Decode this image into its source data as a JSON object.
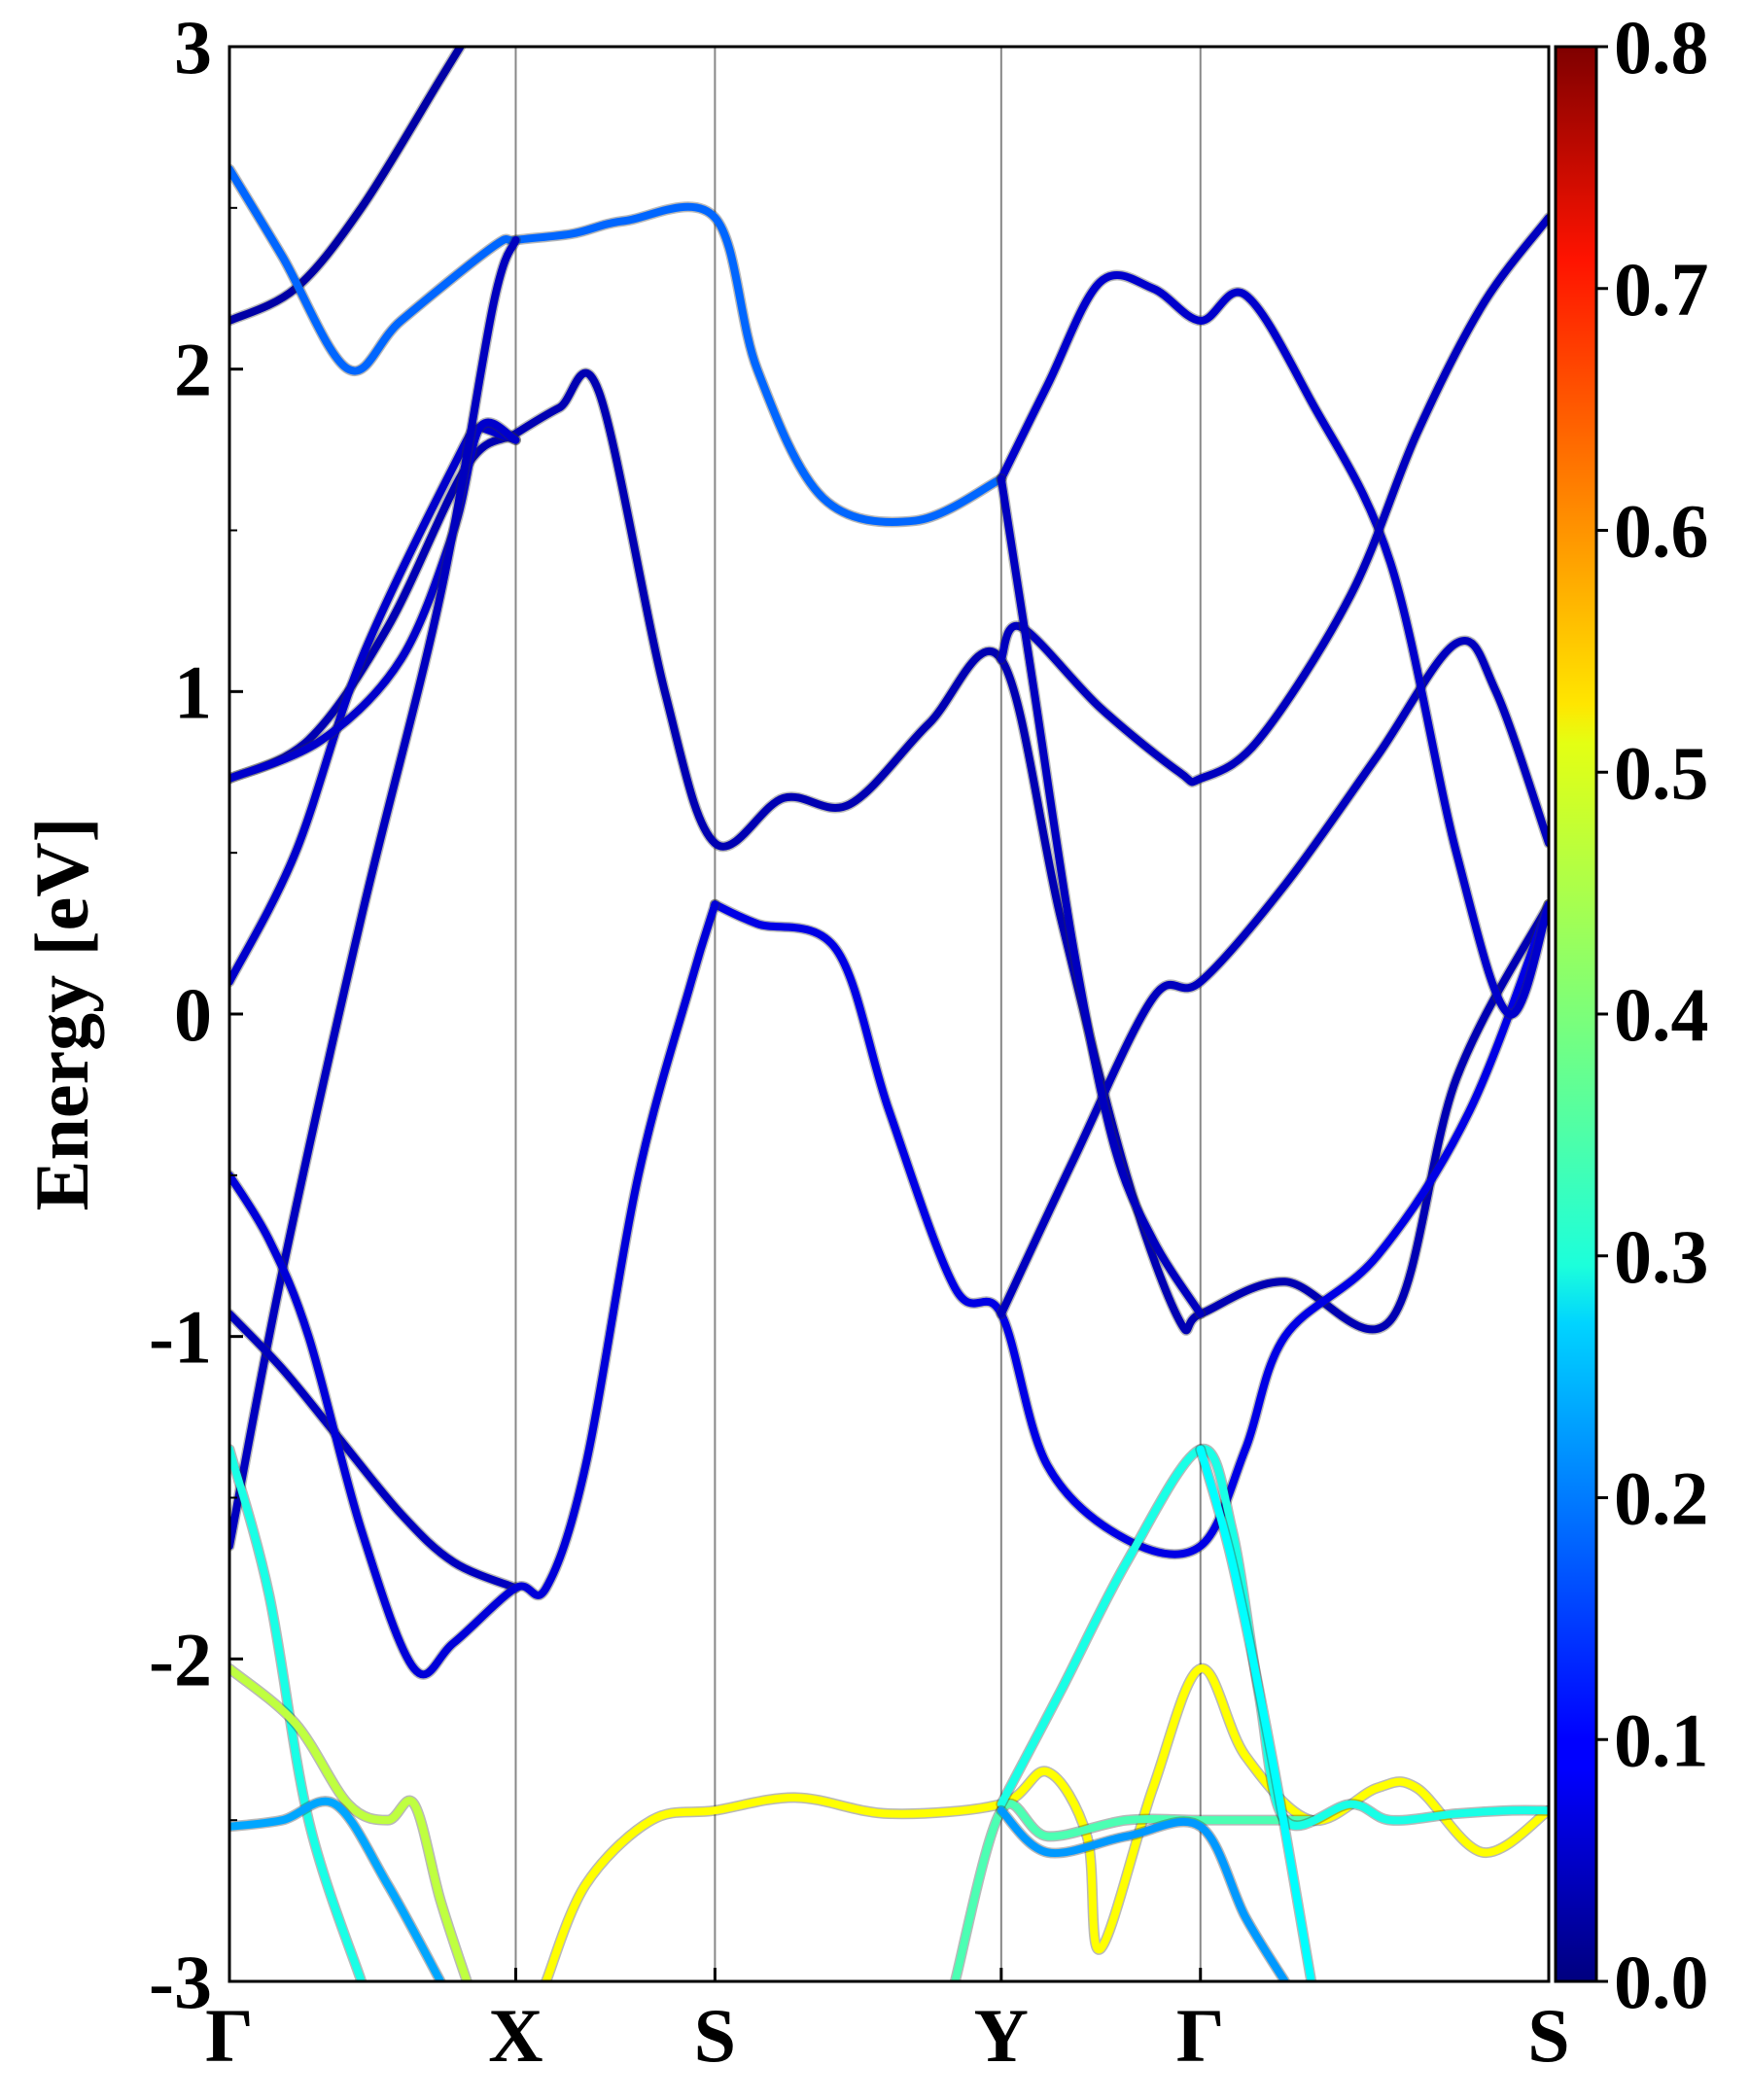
{
  "chart_data": {
    "type": "line",
    "title": "",
    "xlabel": "",
    "ylabel": "Energy [eV]",
    "ylim": [
      -3,
      3
    ],
    "grid": false,
    "legend": "none",
    "k_labels": [
      "Γ",
      "X",
      "S",
      "Y",
      "Γ",
      "S"
    ],
    "k_positions": [
      0.0,
      0.217,
      0.368,
      0.585,
      0.736,
      1.0
    ],
    "y_ticks": [
      "-3",
      "-2",
      "-1",
      "0",
      "1",
      "2",
      "3"
    ],
    "colorbar": {
      "min": 0.0,
      "max": 0.8,
      "ticks": [
        "0.0",
        "0.1",
        "0.2",
        "0.3",
        "0.4",
        "0.5",
        "0.6",
        "0.7",
        "0.8"
      ],
      "colormap": "jet"
    },
    "bands": [
      {
        "weight": 0.03,
        "points": [
          [
            0,
            2.15
          ],
          [
            0.05,
            2.25
          ],
          [
            0.1,
            2.5
          ],
          [
            0.16,
            2.9
          ],
          [
            0.19,
            3.1
          ]
        ]
      },
      {
        "weight": 0.18,
        "points": [
          [
            0,
            2.62
          ],
          [
            0.04,
            2.35
          ],
          [
            0.09,
            2.0
          ],
          [
            0.13,
            2.15
          ],
          [
            0.2,
            2.38
          ],
          [
            0.217,
            2.4
          ],
          [
            0.26,
            2.42
          ],
          [
            0.3,
            2.46
          ],
          [
            0.368,
            2.47
          ],
          [
            0.4,
            2.0
          ],
          [
            0.45,
            1.6
          ],
          [
            0.52,
            1.53
          ],
          [
            0.585,
            1.66
          ]
        ]
      },
      {
        "weight": 0.04,
        "points": [
          [
            0,
            0.73
          ],
          [
            0.06,
            0.85
          ],
          [
            0.12,
            1.2
          ],
          [
            0.18,
            1.7
          ],
          [
            0.217,
            1.8
          ],
          [
            0.25,
            1.88
          ],
          [
            0.28,
            1.93
          ],
          [
            0.33,
            1.0
          ],
          [
            0.368,
            0.53
          ],
          [
            0.42,
            0.67
          ],
          [
            0.47,
            0.65
          ],
          [
            0.53,
            0.9
          ],
          [
            0.585,
            1.1
          ],
          [
            0.63,
            0.3
          ],
          [
            0.68,
            -0.5
          ],
          [
            0.72,
            -0.95
          ],
          [
            0.736,
            -0.93
          ],
          [
            0.8,
            -0.83
          ],
          [
            0.88,
            -0.95
          ],
          [
            0.93,
            -0.2
          ],
          [
            1.0,
            0.34
          ]
        ]
      },
      {
        "weight": 0.06,
        "points": [
          [
            0,
            0.1
          ],
          [
            0.05,
            0.5
          ],
          [
            0.1,
            1.1
          ],
          [
            0.17,
            1.7
          ],
          [
            0.19,
            1.82
          ],
          [
            0.217,
            1.78
          ],
          [
            0.19,
            1.82
          ]
        ]
      },
      {
        "weight": 0.06,
        "points": [
          [
            0.217,
            1.78
          ],
          [
            0.19,
            1.82
          ],
          [
            0.17,
            1.5
          ],
          [
            0.13,
            1.1
          ],
          [
            0.07,
            0.85
          ],
          [
            0.0,
            0.73
          ]
        ]
      },
      {
        "weight": 0.05,
        "points": [
          [
            0,
            -1.65
          ],
          [
            0.04,
            -0.8
          ],
          [
            0.1,
            0.3
          ],
          [
            0.16,
            1.3
          ],
          [
            0.2,
            2.2
          ],
          [
            0.217,
            2.4
          ]
        ]
      },
      {
        "weight": 0.08,
        "points": [
          [
            0.368,
            0.34
          ],
          [
            0.4,
            0.28
          ],
          [
            0.46,
            0.2
          ],
          [
            0.5,
            -0.3
          ],
          [
            0.55,
            -0.85
          ],
          [
            0.585,
            -0.93
          ],
          [
            0.62,
            -1.4
          ],
          [
            0.68,
            -1.63
          ],
          [
            0.736,
            -1.65
          ],
          [
            0.77,
            -1.35
          ],
          [
            0.8,
            -1.0
          ],
          [
            0.87,
            -0.75
          ],
          [
            0.94,
            -0.3
          ],
          [
            1.0,
            0.34
          ]
        ]
      },
      {
        "weight": 0.05,
        "points": [
          [
            0.585,
            -0.93
          ],
          [
            0.64,
            -0.45
          ],
          [
            0.7,
            0.05
          ],
          [
            0.736,
            0.1
          ],
          [
            0.8,
            0.4
          ],
          [
            0.87,
            0.8
          ],
          [
            0.93,
            1.15
          ],
          [
            0.96,
            1.0
          ],
          [
            1.0,
            0.53
          ]
        ]
      },
      {
        "weight": 0.06,
        "points": [
          [
            0.585,
            1.66
          ],
          [
            0.62,
            1.95
          ],
          [
            0.66,
            2.27
          ],
          [
            0.7,
            2.25
          ],
          [
            0.736,
            2.15
          ],
          [
            0.77,
            2.23
          ],
          [
            0.82,
            1.9
          ],
          [
            0.88,
            1.4
          ],
          [
            0.93,
            0.5
          ],
          [
            0.97,
            0.0
          ],
          [
            1.0,
            0.34
          ]
        ]
      },
      {
        "weight": 0.05,
        "points": [
          [
            0.585,
            1.1
          ],
          [
            0.6,
            1.2
          ],
          [
            0.66,
            0.95
          ],
          [
            0.72,
            0.75
          ],
          [
            0.736,
            0.73
          ],
          [
            0.78,
            0.85
          ],
          [
            0.85,
            1.3
          ],
          [
            0.9,
            1.8
          ],
          [
            0.95,
            2.2
          ],
          [
            1.0,
            2.47
          ]
        ]
      },
      {
        "weight": 0.05,
        "points": [
          [
            0.585,
            1.66
          ],
          [
            0.61,
            1.0
          ],
          [
            0.64,
            0.2
          ],
          [
            0.67,
            -0.4
          ],
          [
            0.7,
            -0.7
          ],
          [
            0.736,
            -0.93
          ]
        ]
      },
      {
        "weight": 0.05,
        "points": [
          [
            0.0,
            -0.93
          ],
          [
            0.04,
            -1.1
          ],
          [
            0.08,
            -1.3
          ],
          [
            0.13,
            -1.55
          ],
          [
            0.17,
            -1.7
          ],
          [
            0.217,
            -1.78
          ]
        ]
      },
      {
        "weight": 0.07,
        "points": [
          [
            0.0,
            -0.5
          ],
          [
            0.03,
            -0.7
          ],
          [
            0.06,
            -1.0
          ],
          [
            0.1,
            -1.6
          ],
          [
            0.14,
            -2.03
          ],
          [
            0.17,
            -1.95
          ],
          [
            0.217,
            -1.78
          ],
          [
            0.24,
            -1.78
          ],
          [
            0.27,
            -1.4
          ],
          [
            0.31,
            -0.5
          ],
          [
            0.35,
            0.1
          ],
          [
            0.368,
            0.34
          ]
        ]
      },
      {
        "weight": 0.32,
        "points": [
          [
            0.0,
            -1.35
          ],
          [
            0.03,
            -1.8
          ],
          [
            0.06,
            -2.5
          ],
          [
            0.1,
            -3.0
          ]
        ]
      },
      {
        "weight": 0.45,
        "points": [
          [
            0.0,
            -2.03
          ],
          [
            0.05,
            -2.2
          ],
          [
            0.09,
            -2.45
          ],
          [
            0.12,
            -2.5
          ],
          [
            0.14,
            -2.45
          ],
          [
            0.16,
            -2.75
          ],
          [
            0.18,
            -3.0
          ]
        ]
      },
      {
        "weight": 0.23,
        "points": [
          [
            0.0,
            -2.52
          ],
          [
            0.04,
            -2.5
          ],
          [
            0.08,
            -2.45
          ],
          [
            0.12,
            -2.7
          ],
          [
            0.16,
            -3.0
          ]
        ]
      },
      {
        "weight": 0.5,
        "points": [
          [
            0.24,
            -3.0
          ],
          [
            0.27,
            -2.7
          ],
          [
            0.32,
            -2.5
          ],
          [
            0.368,
            -2.47
          ],
          [
            0.43,
            -2.43
          ],
          [
            0.5,
            -2.48
          ],
          [
            0.585,
            -2.45
          ],
          [
            0.62,
            -2.35
          ],
          [
            0.65,
            -2.55
          ],
          [
            0.66,
            -2.9
          ],
          [
            0.7,
            -2.4
          ],
          [
            0.736,
            -2.03
          ],
          [
            0.77,
            -2.3
          ],
          [
            0.82,
            -2.5
          ],
          [
            0.87,
            -2.4
          ],
          [
            0.9,
            -2.4
          ],
          [
            0.95,
            -2.6
          ],
          [
            1.0,
            -2.47
          ]
        ]
      },
      {
        "weight": 0.36,
        "points": [
          [
            0.55,
            -3.0
          ],
          [
            0.585,
            -2.47
          ],
          [
            0.62,
            -2.55
          ],
          [
            0.68,
            -2.5
          ],
          [
            0.736,
            -2.5
          ],
          [
            0.78,
            -2.5
          ],
          [
            0.82,
            -2.5
          ]
        ]
      },
      {
        "weight": 0.32,
        "points": [
          [
            0.585,
            -2.45
          ],
          [
            0.63,
            -2.1
          ],
          [
            0.68,
            -1.7
          ],
          [
            0.736,
            -1.35
          ],
          [
            0.76,
            -1.6
          ],
          [
            0.78,
            -2.1
          ],
          [
            0.8,
            -2.5
          ],
          [
            0.85,
            -2.45
          ],
          [
            0.88,
            -2.5
          ],
          [
            0.93,
            -2.48
          ],
          [
            0.97,
            -2.47
          ],
          [
            1.0,
            -2.47
          ]
        ]
      },
      {
        "weight": 0.22,
        "points": [
          [
            0.585,
            -2.47
          ],
          [
            0.62,
            -2.6
          ],
          [
            0.68,
            -2.55
          ],
          [
            0.736,
            -2.52
          ],
          [
            0.77,
            -2.8
          ],
          [
            0.8,
            -3.0
          ]
        ]
      },
      {
        "weight": 0.3,
        "points": [
          [
            0.736,
            -1.35
          ],
          [
            0.76,
            -1.7
          ],
          [
            0.79,
            -2.3
          ],
          [
            0.82,
            -3.0
          ]
        ]
      }
    ]
  }
}
